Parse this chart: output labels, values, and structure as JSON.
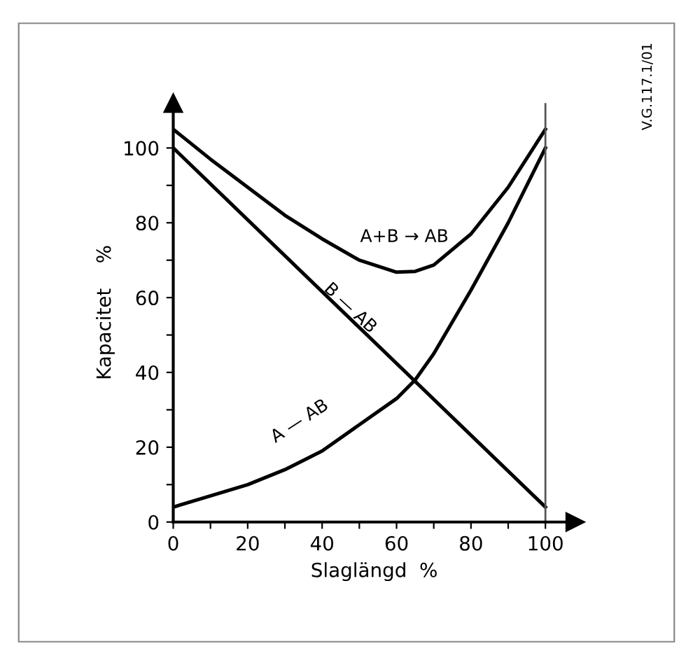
{
  "chart_data": {
    "type": "line",
    "xlabel": "Slaglängd  %",
    "ylabel": "Kapacitet    %",
    "x": [
      0,
      10,
      20,
      30,
      40,
      50,
      60,
      65,
      70,
      80,
      90,
      100
    ],
    "series": [
      {
        "color": "#000000",
        "values": [
          105,
          97,
          89.5,
          82,
          75.7,
          70,
          66.8,
          67,
          68.7,
          77,
          89.5,
          105
        ]
      },
      {
        "color": "#000000",
        "x": [
          0,
          100
        ],
        "values": [
          100,
          4
        ]
      },
      {
        "color": "#000000",
        "values": [
          4,
          7,
          10,
          14,
          19,
          26,
          33,
          38,
          45,
          62,
          80,
          100
        ]
      }
    ],
    "xlim": [
      0,
      108
    ],
    "ylim": [
      0,
      112
    ],
    "xticks": [
      0,
      {
        "value": 10,
        "label": null
      },
      20,
      {
        "value": 30,
        "label": null
      },
      40,
      {
        "value": 50,
        "label": null
      },
      60,
      {
        "value": 70,
        "label": null
      },
      80,
      {
        "value": 90,
        "label": null
      },
      100
    ],
    "yticks": [
      0,
      {
        "value": 10,
        "label": null
      },
      20,
      {
        "value": 30,
        "label": null
      },
      40,
      {
        "value": 50,
        "label": null
      },
      60,
      {
        "value": 70,
        "label": null
      },
      80,
      {
        "value": 90,
        "label": null
      },
      100
    ],
    "ref_lines": [
      {
        "axis": "x",
        "value": 100,
        "color": "#555555"
      }
    ],
    "annotations": [
      "A+B → AB",
      "B — AB",
      "A — AB",
      "V.G.117.1/01"
    ],
    "grid": false,
    "legend": false,
    "marker": "none",
    "line_style": "solid"
  }
}
